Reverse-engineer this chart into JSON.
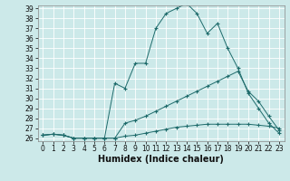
{
  "title": "",
  "xlabel": "Humidex (Indice chaleur)",
  "ylabel": "",
  "background_color": "#cce9e9",
  "grid_color": "#ffffff",
  "line_color": "#1e6b6b",
  "x_values": [
    0,
    1,
    2,
    3,
    4,
    5,
    6,
    7,
    8,
    9,
    10,
    11,
    12,
    13,
    14,
    15,
    16,
    17,
    18,
    19,
    20,
    21,
    22,
    23
  ],
  "line1": [
    26.3,
    26.4,
    26.3,
    26.0,
    26.0,
    26.0,
    26.0,
    26.0,
    26.2,
    26.3,
    26.5,
    26.7,
    26.9,
    27.1,
    27.2,
    27.3,
    27.4,
    27.4,
    27.4,
    27.4,
    27.4,
    27.3,
    27.2,
    27.0
  ],
  "line2": [
    26.3,
    26.4,
    26.3,
    26.0,
    26.0,
    26.0,
    26.0,
    26.0,
    27.5,
    27.8,
    28.2,
    28.7,
    29.2,
    29.7,
    30.2,
    30.7,
    31.2,
    31.7,
    32.2,
    32.7,
    30.7,
    29.7,
    28.2,
    26.8
  ],
  "line3": [
    26.3,
    26.4,
    26.3,
    26.0,
    26.0,
    26.0,
    26.0,
    31.5,
    31.0,
    33.5,
    33.5,
    37.0,
    38.5,
    39.0,
    39.5,
    38.5,
    36.5,
    37.5,
    35.0,
    33.0,
    30.5,
    29.0,
    27.5,
    26.5
  ],
  "ylim_min": 26,
  "ylim_max": 39,
  "xlim_min": 0,
  "xlim_max": 23,
  "yticks": [
    26,
    27,
    28,
    29,
    30,
    31,
    32,
    33,
    34,
    35,
    36,
    37,
    38,
    39
  ],
  "xticks": [
    0,
    1,
    2,
    3,
    4,
    5,
    6,
    7,
    8,
    9,
    10,
    11,
    12,
    13,
    14,
    15,
    16,
    17,
    18,
    19,
    20,
    21,
    22,
    23
  ],
  "tick_fontsize": 5.5,
  "xlabel_fontsize": 7,
  "figsize": [
    3.2,
    2.0
  ],
  "dpi": 100
}
